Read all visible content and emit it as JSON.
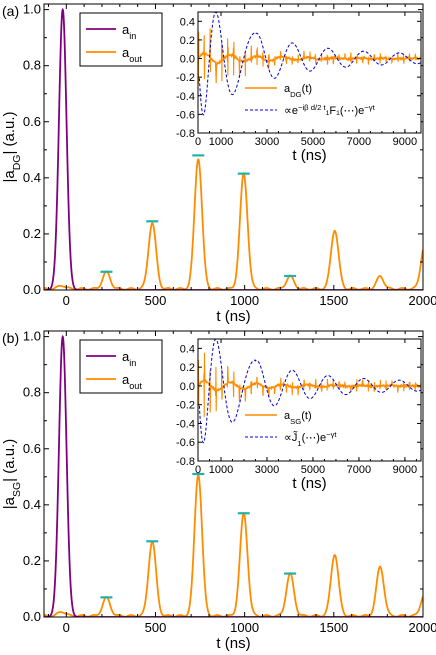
{
  "chart_data": [
    {
      "type": "line",
      "panel_label": "(a)",
      "ylabel": "|a",
      "ylabel_sub": "DG",
      "ylabel_tail": "| (a.u.)",
      "xlabel": "t (ns)",
      "xlim": [
        -125,
        2000
      ],
      "ylim": [
        0,
        1.02
      ],
      "xticks": [
        "0",
        "500",
        "1000",
        "1500",
        "2000"
      ],
      "yticks": [
        "0.0",
        "0.2",
        "0.4",
        "0.6",
        "0.8",
        "1.0"
      ],
      "legend": [
        {
          "name": "a",
          "sub": "in",
          "color": "#800080"
        },
        {
          "name": "a",
          "sub": "out",
          "color": "#ff8c00"
        }
      ],
      "series": [
        {
          "name": "a_in",
          "color": "#800080",
          "gaussian": {
            "center": -20,
            "height": 1.0,
            "width": 30
          }
        },
        {
          "name": "a_out",
          "color": "#ff8c00",
          "peaks": [
            {
              "t": -25,
              "h": 0.012,
              "w": 30
            },
            {
              "t": 225,
              "h": 0.06,
              "w": 30
            },
            {
              "t": 482,
              "h": 0.235,
              "w": 30
            },
            {
              "t": 740,
              "h": 0.465,
              "w": 30
            },
            {
              "t": 995,
              "h": 0.41,
              "w": 30
            },
            {
              "t": 1255,
              "h": 0.045,
              "w": 30
            },
            {
              "t": 1505,
              "h": 0.21,
              "w": 30
            },
            {
              "t": 1760,
              "h": 0.045,
              "w": 28
            },
            {
              "t": 2010,
              "h": 0.16,
              "w": 30
            }
          ]
        }
      ],
      "markers": {
        "color": "#20b2aa",
        "points": [
          [
            225,
            0.065
          ],
          [
            482,
            0.245
          ],
          [
            740,
            0.48
          ],
          [
            995,
            0.415
          ],
          [
            1255,
            0.05
          ]
        ]
      },
      "inset": {
        "xlim": [
          0,
          9700
        ],
        "ylim": [
          -0.8,
          0.5
        ],
        "xticks": [
          "0",
          "1000",
          "3000",
          "5000",
          "7000",
          "9000"
        ],
        "yticks": [
          "-0.8",
          "-0.6",
          "-0.4",
          "-0.2",
          "0.0",
          "0.2",
          "0.4"
        ],
        "xlabel": "t (ns)",
        "legend": [
          {
            "text": "a",
            "sub": "DG",
            "tail": "(t)",
            "style": "solid",
            "color": "#ff8c00"
          },
          {
            "text": "∝e",
            "sup": "−iβ d/2 t",
            "tail": "₁F₁(⋯)e",
            "sup2": "−γt",
            "style": "dashed",
            "color": "#0000cd"
          }
        ]
      }
    },
    {
      "type": "line",
      "panel_label": "(b)",
      "ylabel": "|a",
      "ylabel_sub": "SG",
      "ylabel_tail": "| (a.u.)",
      "xlabel": "t (ns)",
      "xlim": [
        -125,
        2000
      ],
      "ylim": [
        0,
        1.02
      ],
      "xticks": [
        "0",
        "500",
        "1000",
        "1500",
        "2000"
      ],
      "yticks": [
        "0.0",
        "0.2",
        "0.4",
        "0.6",
        "0.8",
        "1.0"
      ],
      "legend": [
        {
          "name": "a",
          "sub": "in",
          "color": "#800080"
        },
        {
          "name": "a",
          "sub": "out",
          "color": "#ff8c00"
        }
      ],
      "series": [
        {
          "name": "a_in",
          "color": "#800080",
          "gaussian": {
            "center": -20,
            "height": 1.0,
            "width": 30
          }
        },
        {
          "name": "a_out",
          "color": "#ff8c00",
          "peaks": [
            {
              "t": -25,
              "h": 0.015,
              "w": 30
            },
            {
              "t": 225,
              "h": 0.065,
              "w": 30
            },
            {
              "t": 482,
              "h": 0.265,
              "w": 30
            },
            {
              "t": 740,
              "h": 0.505,
              "w": 30
            },
            {
              "t": 995,
              "h": 0.365,
              "w": 30
            },
            {
              "t": 1255,
              "h": 0.15,
              "w": 30
            },
            {
              "t": 1505,
              "h": 0.22,
              "w": 30
            },
            {
              "t": 1760,
              "h": 0.175,
              "w": 30
            },
            {
              "t": 2010,
              "h": 0.08,
              "w": 30
            }
          ]
        }
      ],
      "markers": {
        "color": "#20b2aa",
        "points": [
          [
            225,
            0.07
          ],
          [
            482,
            0.27
          ],
          [
            740,
            0.51
          ],
          [
            995,
            0.37
          ],
          [
            1255,
            0.155
          ]
        ]
      },
      "inset": {
        "xlim": [
          0,
          9700
        ],
        "ylim": [
          -0.8,
          0.5
        ],
        "xticks": [
          "0",
          "1000",
          "3000",
          "5000",
          "7000",
          "9000"
        ],
        "yticks": [
          "-0.8",
          "-0.6",
          "-0.4",
          "-0.2",
          "0.0",
          "0.2",
          "0.4"
        ],
        "xlabel": "t (ns)",
        "legend": [
          {
            "text": "a",
            "sub": "SG",
            "tail": "(t)",
            "style": "solid",
            "color": "#ff8c00"
          },
          {
            "text": "∝J̃",
            "sub": "1",
            "tail": "(⋯)e",
            "sup2": "−γt",
            "style": "dashed",
            "color": "#0000cd"
          }
        ]
      }
    }
  ]
}
